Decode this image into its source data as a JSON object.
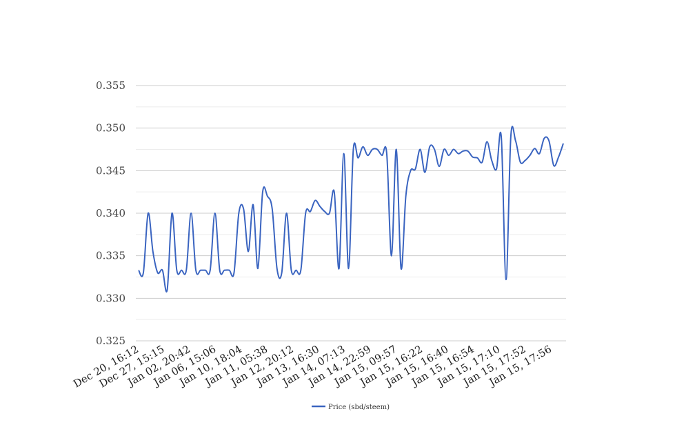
{
  "chart_data": {
    "type": "line",
    "title": "",
    "xlabel": "",
    "ylabel": "",
    "ylim": [
      0.325,
      0.355
    ],
    "y_ticks": [
      "0.325",
      "0.330",
      "0.335",
      "0.340",
      "0.345",
      "0.350",
      "0.355"
    ],
    "x_tick_labels": [
      "Dec 20, 16:12",
      "Dec 27, 15:15",
      "Jan 02, 20:42",
      "Jan 06, 15:06",
      "Jan 10, 18:04",
      "Jan 11, 05:38",
      "Jan 12, 20:12",
      "Jan 13, 16:30",
      "Jan 14, 07:13",
      "Jan 14, 22:59",
      "Jan 15, 09:57",
      "Jan 15, 16:22",
      "Jan 15, 16:40",
      "Jan 15, 16:54",
      "Jan 15, 17:10",
      "Jan 15, 17:52",
      "Jan 15, 17:56"
    ],
    "grid": true,
    "legend_position": "bottom",
    "series": [
      {
        "name": "Price (sbd/steem)",
        "color": "#3a64c0",
        "values": [
          0.3333,
          0.333,
          0.34,
          0.3355,
          0.333,
          0.3333,
          0.331,
          0.34,
          0.3333,
          0.3333,
          0.3333,
          0.34,
          0.3333,
          0.3333,
          0.3333,
          0.3333,
          0.34,
          0.3333,
          0.3333,
          0.3333,
          0.333,
          0.34,
          0.3405,
          0.3355,
          0.341,
          0.3335,
          0.3425,
          0.342,
          0.3405,
          0.3335,
          0.333,
          0.34,
          0.3333,
          0.3333,
          0.3333,
          0.34,
          0.3402,
          0.3415,
          0.3408,
          0.3402,
          0.34,
          0.3425,
          0.3335,
          0.347,
          0.3335,
          0.3475,
          0.3465,
          0.3478,
          0.3468,
          0.3475,
          0.3475,
          0.3468,
          0.347,
          0.335,
          0.3475,
          0.3335,
          0.342,
          0.345,
          0.3452,
          0.3475,
          0.3448,
          0.3478,
          0.3475,
          0.3455,
          0.3475,
          0.3468,
          0.3475,
          0.347,
          0.3473,
          0.3473,
          0.3466,
          0.3465,
          0.346,
          0.3484,
          0.3462,
          0.3452,
          0.349,
          0.3322,
          0.349,
          0.3485,
          0.346,
          0.3462,
          0.3468,
          0.3476,
          0.347,
          0.3488,
          0.3485,
          0.3456,
          0.3466,
          0.3482
        ]
      }
    ]
  }
}
